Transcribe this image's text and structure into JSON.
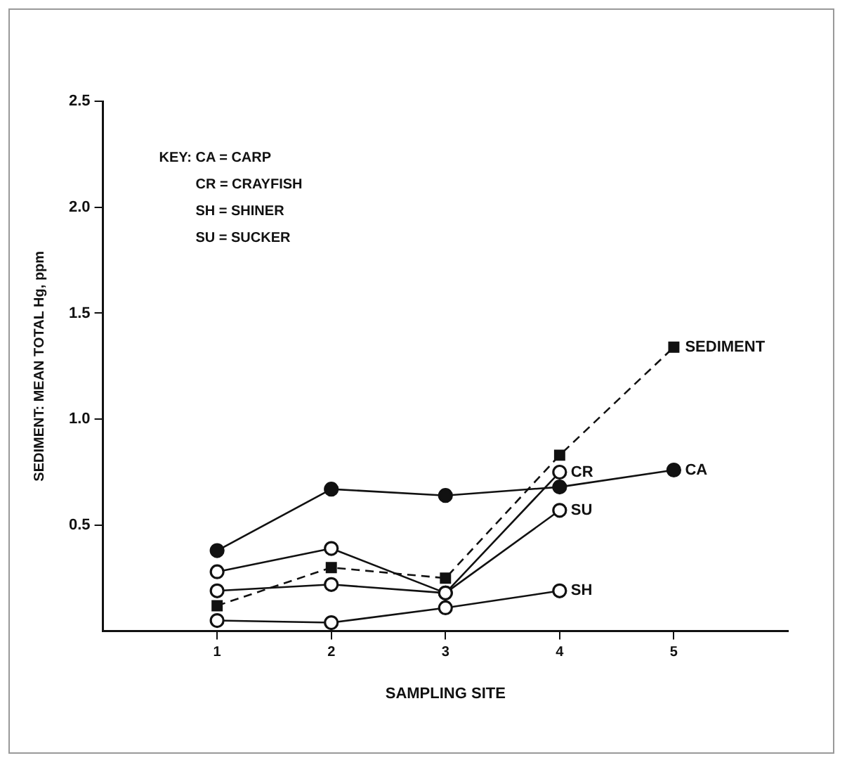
{
  "chart_data": {
    "type": "line",
    "xlabel": "SAMPLING SITE",
    "ylabel": "SEDIMENT: MEAN TOTAL Hg, ppm",
    "x": [
      1,
      2,
      3,
      4,
      5
    ],
    "xlim": [
      0,
      6
    ],
    "xticks": [
      1,
      2,
      3,
      4,
      5
    ],
    "ylim": [
      0,
      2.5
    ],
    "yticks": [
      0.5,
      {
        "value": 1,
        "label": "1.0"
      },
      {
        "value": 1.5,
        "label": "1.5"
      },
      {
        "value": 2,
        "label": "2.0"
      },
      {
        "value": 2.5,
        "label": "2.5"
      }
    ],
    "grid": false,
    "legend": false,
    "marker": "circle",
    "annotations": [
      "KEY: CA = CARP",
      "CR = CRAYFISH",
      "SH = SHINER",
      "SU = SUCKER"
    ],
    "series": [
      {
        "name": "CA",
        "color": "#111111",
        "values": [
          0.38,
          0.67,
          0.64,
          0.68,
          0.76
        ],
        "line_style": "solid"
      },
      {
        "name": "CR",
        "color": "#111111",
        "values": [
          0.28,
          0.39,
          0.18,
          0.75,
          null
        ],
        "line_style": "solid"
      },
      {
        "name": "SU",
        "color": "#111111",
        "values": [
          0.19,
          0.22,
          0.18,
          0.57,
          null
        ],
        "line_style": "solid"
      },
      {
        "name": "SH",
        "color": "#111111",
        "values": [
          0.05,
          0.04,
          0.11,
          0.19,
          null
        ],
        "line_style": "solid"
      },
      {
        "name": "SEDIMENT",
        "color": "#111111",
        "values": [
          0.12,
          0.3,
          0.25,
          0.83,
          1.34
        ],
        "line_style": "dashed",
        "marker": "square"
      }
    ]
  }
}
